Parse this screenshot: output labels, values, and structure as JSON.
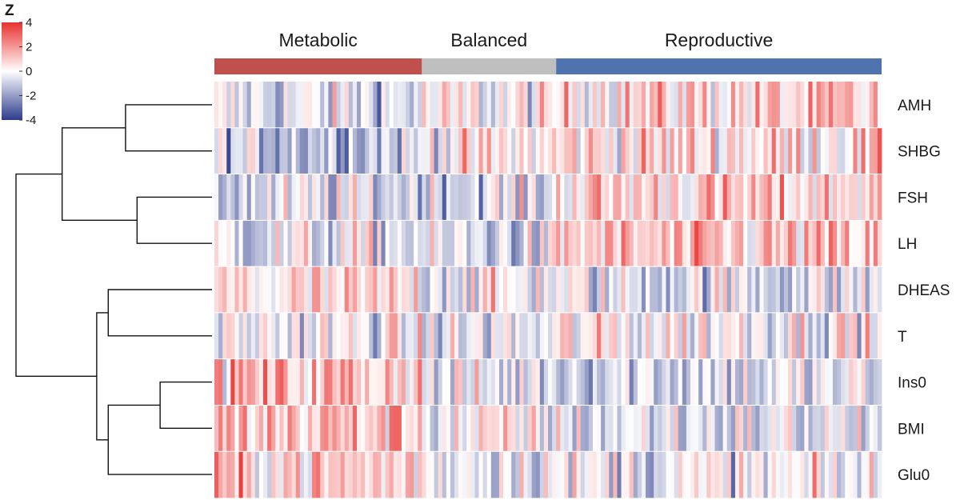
{
  "chart_data": {
    "type": "heatmap",
    "title": "",
    "groups": [
      {
        "label": "Metabolic",
        "color": "#c0504d",
        "count": 51
      },
      {
        "label": "Balanced",
        "color": "#bfbfbf",
        "count": 33
      },
      {
        "label": "Reproductive",
        "color": "#4f73ae",
        "count": 80
      }
    ],
    "rows": [
      "AMH",
      "SHBG",
      "FSH",
      "LH",
      "DHEAS",
      "T",
      "Ins0",
      "BMI",
      "Glu0"
    ],
    "row_group_means": [
      [
        -0.6,
        -0.1,
        0.8
      ],
      [
        -1.0,
        0.3,
        0.7
      ],
      [
        -0.7,
        -0.6,
        0.9
      ],
      [
        -0.4,
        -0.8,
        0.9
      ],
      [
        0.4,
        0.0,
        -0.5
      ],
      [
        -0.2,
        -0.5,
        0.2
      ],
      [
        1.3,
        -0.5,
        -0.6
      ],
      [
        1.2,
        0.0,
        -0.5
      ],
      [
        0.9,
        0.0,
        -0.3
      ]
    ],
    "colorbar": {
      "label": "Z",
      "ticks": [
        "4",
        "2",
        "0",
        "-2",
        "-4"
      ],
      "range": [
        -4,
        4
      ],
      "low_color": "#2c3c8c",
      "mid_color": "#ffffff",
      "high_color": "#e8322f"
    },
    "dendrogram": {
      "leaves": [
        "AMH",
        "SHBG",
        "FSH",
        "LH",
        "DHEAS",
        "T",
        "Ins0",
        "BMI",
        "Glu0"
      ],
      "merges": [
        {
          "left": "AMH",
          "right": "SHBG",
          "height": 3.5
        },
        {
          "left": "FSH",
          "right": "LH",
          "height": 3.3
        },
        {
          "left": "AMH+SHBG",
          "right": "FSH+LH",
          "height": 4.6
        },
        {
          "left": "DHEAS",
          "right": "T",
          "height": 3.8
        },
        {
          "left": "Ins0",
          "right": "BMI",
          "height": 2.9
        },
        {
          "left": "Ins0+BMI",
          "right": "Glu0",
          "height": 3.8
        },
        {
          "left": "DHEAS+T",
          "right": "Ins0+BMI+Glu0",
          "height": 4.0
        },
        {
          "left": "AMH+SHBG+FSH+LH",
          "right": "DHEAS+T+Ins0+BMI+Glu0",
          "height": 5.4
        }
      ]
    }
  }
}
